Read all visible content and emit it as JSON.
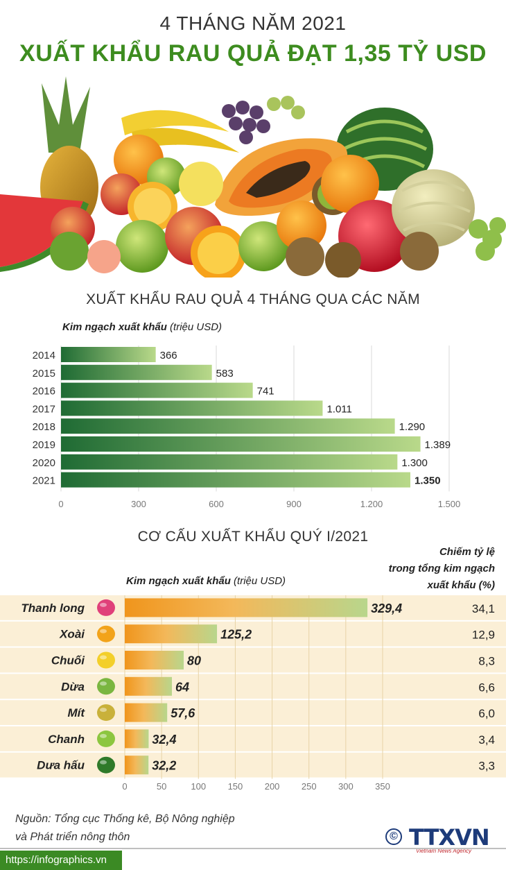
{
  "header": {
    "line1": "4 THÁNG NĂM 2021",
    "line2": "XUẤT KHẨU RAU QUẢ ĐẠT 1,35 TỶ USD"
  },
  "section1": {
    "title": "XUẤT KHẨU RAU QUẢ 4 THÁNG QUA CÁC NĂM",
    "axis_bold": "Kim ngạch xuất khẩu",
    "axis_unit": "(triệu USD)"
  },
  "section2": {
    "title": "CƠ CẤU XUẤT KHẨU QUÝ I/2021",
    "axis_bold": "Kim ngạch xuất khẩu",
    "axis_unit": "(triệu USD)",
    "share_header": [
      "Chiếm tỷ lệ",
      "trong tổng kim ngạch",
      "xuất khẩu (%)"
    ]
  },
  "chart_data": [
    {
      "type": "bar",
      "orientation": "horizontal",
      "title": "XUẤT KHẨU RAU QUẢ 4 THÁNG QUA CÁC NĂM",
      "xlabel": "Kim ngạch xuất khẩu (triệu USD)",
      "categories": [
        "2014",
        "2015",
        "2016",
        "2017",
        "2018",
        "2019",
        "2020",
        "2021"
      ],
      "values": [
        366,
        583,
        741,
        1011,
        1290,
        1389,
        1300,
        1350
      ],
      "value_labels": [
        "366",
        "583",
        "741",
        "1.011",
        "1.290",
        "1.389",
        "1.300",
        "1.350"
      ],
      "xlim": [
        0,
        1500
      ],
      "xticks": [
        0,
        300,
        600,
        900,
        1200,
        1500
      ],
      "xtick_labels": [
        "0",
        "300",
        "600",
        "900",
        "1.200",
        "1.500"
      ],
      "colors": {
        "bar_dark": "#1f6b34",
        "bar_light": "#b9d98a"
      }
    },
    {
      "type": "bar",
      "orientation": "horizontal",
      "title": "CƠ CẤU XUẤT KHẨU QUÝ I/2021",
      "xlabel": "Kim ngạch xuất khẩu (triệu USD)",
      "categories": [
        "Thanh long",
        "Xoài",
        "Chuối",
        "Dừa",
        "Mít",
        "Chanh",
        "Dưa hấu"
      ],
      "icons": [
        "dragonfruit-icon",
        "mango-icon",
        "banana-icon",
        "coconut-icon",
        "jackfruit-icon",
        "lime-icon",
        "watermelon-icon"
      ],
      "values": [
        329.4,
        125.2,
        80,
        64,
        57.6,
        32.4,
        32.2
      ],
      "value_labels": [
        "329,4",
        "125,2",
        "80",
        "64",
        "57,6",
        "32,4",
        "32,2"
      ],
      "share_labels": [
        "34,1",
        "12,9",
        "8,3",
        "6,6",
        "6,0",
        "3,4",
        "3,3"
      ],
      "share": [
        34.1,
        12.9,
        8.3,
        6.6,
        6.0,
        3.4,
        3.3
      ],
      "xlim": [
        0,
        350
      ],
      "xticks": [
        0,
        50,
        100,
        150,
        200,
        250,
        300,
        350
      ],
      "colors": {
        "bar_orange": "#f0951c",
        "bar_green": "#b8d68c",
        "row_band": "#fbefd6"
      }
    }
  ],
  "footer": {
    "source_line1": "Nguồn: Tổng cục Thống kê, Bộ Nông nghiệp",
    "source_line2": "và Phát triển nông thôn",
    "url": "https://infographics.vn",
    "logo_symbol": "©",
    "logo_text": "TTXVN",
    "logo_sub": "Vietnam News Agency"
  }
}
